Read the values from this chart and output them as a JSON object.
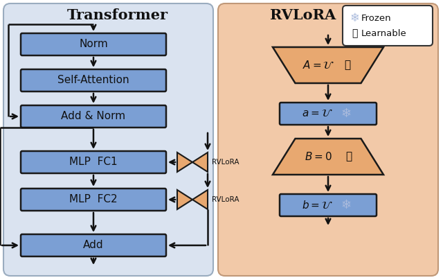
{
  "fig_width": 6.4,
  "fig_height": 4.04,
  "bg_left": "#dae3f0",
  "bg_right": "#f2c9a8",
  "box_blue": "#7b9fd4",
  "box_orange": "#e8a870",
  "box_edge": "#1a1a1a",
  "title_left": "Transformer",
  "title_right": "RVLoRA",
  "legend_frozen": "Frozen",
  "legend_learnable": "Learnable",
  "fire_color": "#cc3300",
  "snow_color": "#aabbdd"
}
